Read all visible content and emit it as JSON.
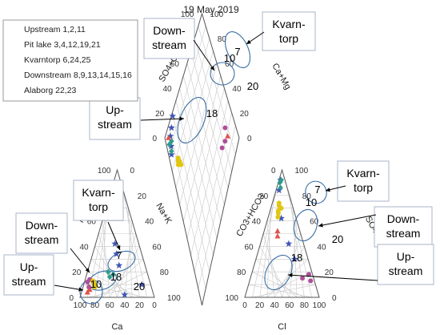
{
  "chart_data": {
    "type": "scatter",
    "title": "19 May 2019",
    "plots": {
      "cation": {
        "axes": [
          "Mg",
          "Na+K",
          "Ca"
        ]
      },
      "anion": {
        "axes": [
          "CO3+HCO3",
          "SO4",
          "Cl"
        ]
      },
      "diamond": {
        "axes": [
          "SO4+Cl",
          "Ca+Mg"
        ]
      }
    },
    "ticks": [
      "0",
      "20",
      "40",
      "60",
      "80",
      "100"
    ],
    "series": [
      {
        "name": "Upstream 1,2,11",
        "color": "#b04e9b",
        "marker": "circle",
        "cation": [
          [
            12,
            4
          ],
          [
            8,
            8
          ],
          [
            14,
            6
          ]
        ],
        "anion": [
          [
            13,
            82
          ],
          [
            18,
            77
          ],
          [
            15,
            70
          ]
        ],
        "diamond": [
          [
            18,
            80
          ],
          [
            20,
            74
          ],
          [
            22,
            84
          ]
        ]
      },
      {
        "name": "Pit lake 3,4,12,19,21",
        "color": "#3f56b5",
        "marker": "star",
        "cation": [
          [
            34,
            32
          ],
          [
            2,
            59
          ],
          [
            25,
            40
          ],
          [
            10,
            78
          ],
          [
            42,
            26
          ]
        ],
        "anion": [
          [
            84,
            4
          ],
          [
            42,
            38
          ],
          [
            62,
            18
          ],
          [
            92,
            2
          ],
          [
            30,
            52
          ]
        ],
        "diamond": [
          [
            86,
            4
          ],
          [
            96,
            17
          ],
          [
            93,
            8
          ],
          [
            94,
            12
          ],
          [
            89,
            6
          ]
        ]
      },
      {
        "name": "Kvarntorp 6,24,25",
        "color": "#2e9c8c",
        "marker": "diamond",
        "cation": [
          [
            16,
            32
          ],
          [
            20,
            28
          ],
          [
            18,
            36
          ]
        ],
        "anion": [
          [
            90,
            2
          ],
          [
            86,
            5
          ],
          [
            92,
            3
          ]
        ],
        "diamond": [
          [
            92,
            4
          ],
          [
            87,
            5
          ],
          [
            90,
            8
          ]
        ]
      },
      {
        "name": "Downstream 8,9,13,14,15,16",
        "color": "#e1c612",
        "marker": "circle",
        "cation": [
          [
            10,
            14
          ],
          [
            8,
            16
          ],
          [
            12,
            12
          ],
          [
            9,
            15
          ],
          [
            11,
            13
          ],
          [
            13,
            11
          ]
        ],
        "anion": [
          [
            72,
            10
          ],
          [
            66,
            12
          ],
          [
            70,
            14
          ],
          [
            63,
            13
          ],
          [
            68,
            11
          ],
          [
            74,
            9
          ]
        ],
        "diamond": [
          [
            72,
            12
          ],
          [
            74,
            10
          ],
          [
            70,
            14
          ],
          [
            76,
            12
          ],
          [
            73,
            13
          ],
          [
            75,
            11
          ]
        ]
      },
      {
        "name": "Alaborg 22,23",
        "color": "#e0524d",
        "marker": "triangle",
        "cation": [
          [
            4,
            8
          ],
          [
            6,
            10
          ]
        ],
        "anion": [
          [
            48,
            20
          ],
          [
            52,
            18
          ]
        ],
        "diamond": [
          [
            16,
            85
          ],
          [
            95,
            5
          ]
        ]
      }
    ],
    "annotations": [
      {
        "plot": "diamond",
        "text": "7",
        "group": "Kvarntorp"
      },
      {
        "plot": "diamond",
        "text": "10",
        "group": "Downstream"
      },
      {
        "plot": "diamond",
        "text": "20",
        "group": "Pit lake"
      },
      {
        "plot": "diamond",
        "text": "18",
        "group": "Upstream"
      },
      {
        "plot": "cation",
        "text": "7",
        "group": "Kvarntorp"
      },
      {
        "plot": "cation",
        "text": "10",
        "group": "Downstream"
      },
      {
        "plot": "cation",
        "text": "18",
        "group": "Upstream"
      },
      {
        "plot": "cation",
        "text": "20",
        "group": "Pit lake"
      },
      {
        "plot": "anion",
        "text": "7",
        "group": "Kvarntorp"
      },
      {
        "plot": "anion",
        "text": "10",
        "group": "Downstream"
      },
      {
        "plot": "anion",
        "text": "20",
        "group": "Pit lake"
      },
      {
        "plot": "anion",
        "text": "18",
        "group": "Upstream"
      }
    ],
    "callouts": {
      "kv_top": "Kvarn-\ntorp",
      "down_top": "Down-\nstream",
      "up_top": "Up-\nstream",
      "kv_cat": "Kvarn-\ntorp",
      "down_cat": "Down-\nstream",
      "up_cat": "Up-\nstream",
      "kv_an": "Kvarn-\ntorp",
      "down_an": "Down-\nstream",
      "up_an": "Up-\nstream"
    },
    "legend": {
      "position": "top-left"
    },
    "grid": true
  }
}
